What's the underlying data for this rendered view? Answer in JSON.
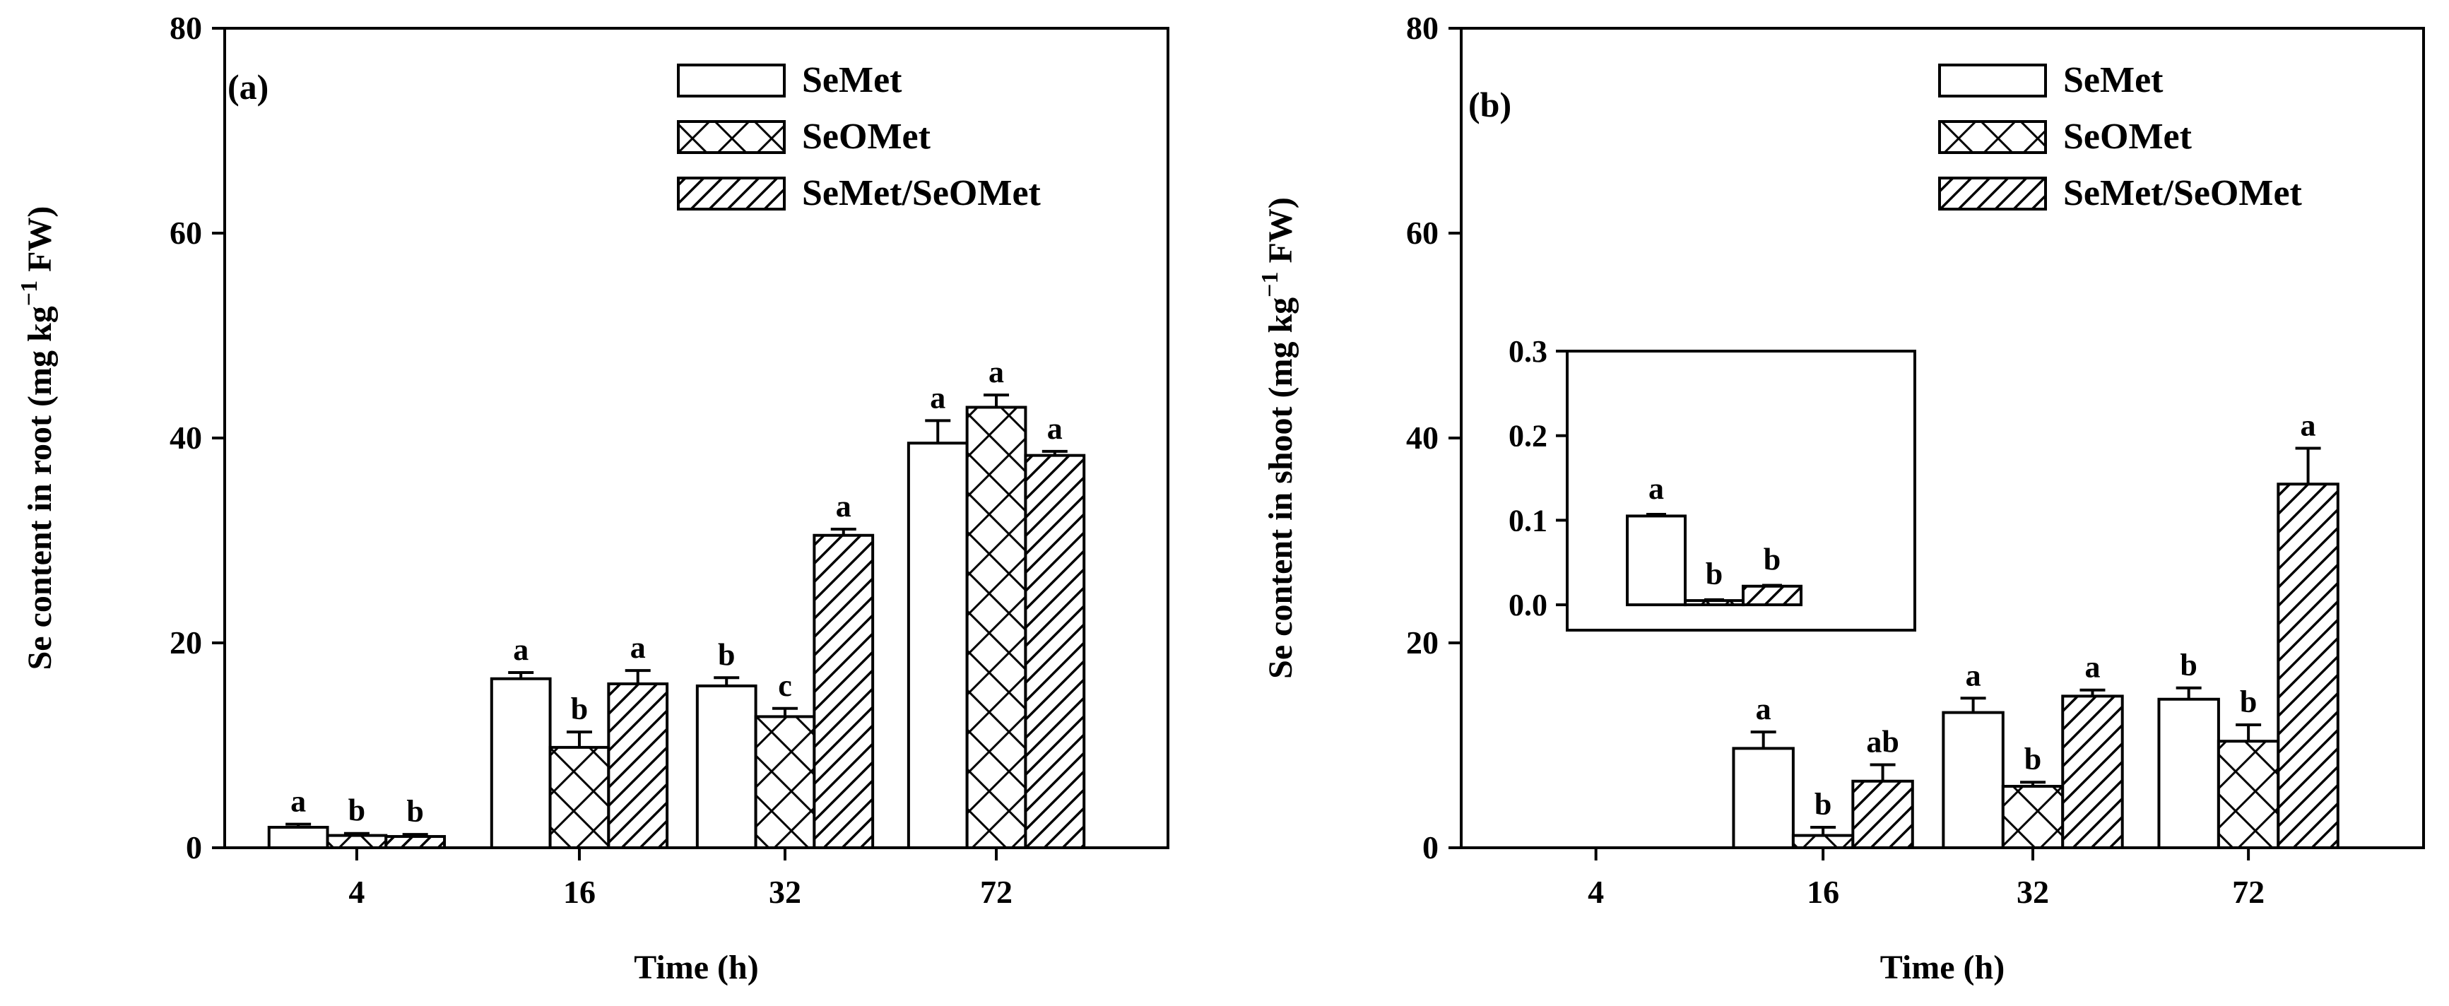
{
  "chart_data": [
    {
      "type": "bar",
      "panel_label": "(a)",
      "categories": [
        "4",
        "16",
        "32",
        "72"
      ],
      "xlabel": "Time (h)",
      "ylabel_main": "Se content in root (mg kg",
      "ylabel_sup": "−1",
      "ylabel_tail": " FW)",
      "ylim": [
        0,
        80
      ],
      "yticks": [
        "0",
        "20",
        "40",
        "60",
        "80"
      ],
      "grid": false,
      "legend_position": "top-right",
      "series": [
        {
          "name": "SeMet",
          "pattern": "open",
          "values": [
            2.0,
            16.5,
            15.8,
            39.5
          ],
          "errors": [
            0.3,
            0.6,
            0.8,
            2.2
          ],
          "letters": [
            "a",
            "a",
            "b",
            "a"
          ]
        },
        {
          "name": "SeOMet",
          "pattern": "crosshatch",
          "values": [
            1.2,
            9.8,
            12.8,
            43.0
          ],
          "errors": [
            0.2,
            1.5,
            0.8,
            1.2
          ],
          "letters": [
            "b",
            "b",
            "c",
            "a"
          ]
        },
        {
          "name": "SeMet/SeOMet",
          "pattern": "diagonal",
          "values": [
            1.1,
            16.0,
            30.5,
            38.3
          ],
          "errors": [
            0.2,
            1.3,
            0.6,
            0.4
          ],
          "letters": [
            "b",
            "a",
            "a",
            "a"
          ]
        }
      ]
    },
    {
      "type": "bar",
      "panel_label": "(b)",
      "categories": [
        "4",
        "16",
        "32",
        "72"
      ],
      "xlabel": "Time (h)",
      "ylabel_main": "Se content in shoot (mg kg",
      "ylabel_sup": "−1",
      "ylabel_tail": " FW)",
      "ylim": [
        0,
        80
      ],
      "yticks": [
        "0",
        "20",
        "40",
        "60",
        "80"
      ],
      "grid": false,
      "legend_position": "top-right",
      "series": [
        {
          "name": "SeMet",
          "pattern": "open",
          "values": [
            0.105,
            9.7,
            13.2,
            14.5
          ],
          "errors": [
            0.002,
            1.6,
            1.4,
            1.1
          ],
          "letters": [
            "",
            "a",
            "a",
            "b"
          ]
        },
        {
          "name": "SeOMet",
          "pattern": "crosshatch",
          "values": [
            0.005,
            1.2,
            6.0,
            10.4
          ],
          "errors": [
            0.001,
            0.8,
            0.4,
            1.6
          ],
          "letters": [
            "",
            "b",
            "b",
            "b"
          ]
        },
        {
          "name": "SeMet/SeOMet",
          "pattern": "diagonal",
          "values": [
            0.022,
            6.5,
            14.8,
            35.5
          ],
          "errors": [
            0.001,
            1.6,
            0.6,
            3.5
          ],
          "letters": [
            "",
            "ab",
            "a",
            "a"
          ]
        }
      ],
      "inset": {
        "category": "4",
        "ylim": [
          -0.03,
          0.3
        ],
        "yticks": [
          "0.0",
          "0.1",
          "0.2",
          "0.3"
        ],
        "values": [
          0.105,
          0.005,
          0.022
        ],
        "errors": [
          0.002,
          0.001,
          0.001
        ],
        "letters": [
          "a",
          "b",
          "b"
        ]
      }
    }
  ]
}
